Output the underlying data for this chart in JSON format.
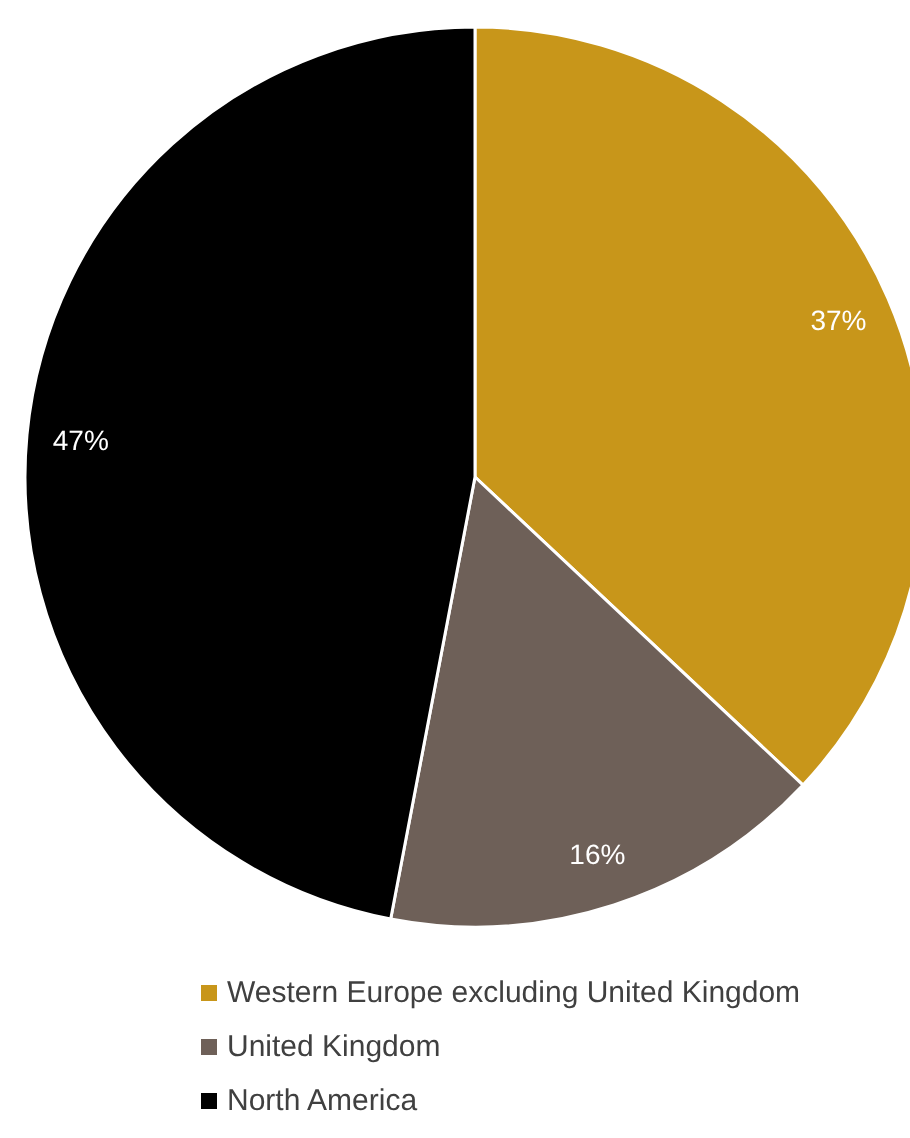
{
  "chart_data": {
    "type": "pie",
    "categories": [
      "Western Europe excluding United Kingdom",
      "United Kingdom",
      "North America"
    ],
    "values": [
      37,
      16,
      47
    ],
    "colors": [
      "#c8961a",
      "#6e6058",
      "#000000"
    ],
    "value_labels": [
      "37%",
      "16%",
      "47%"
    ],
    "legend": "bottom"
  }
}
